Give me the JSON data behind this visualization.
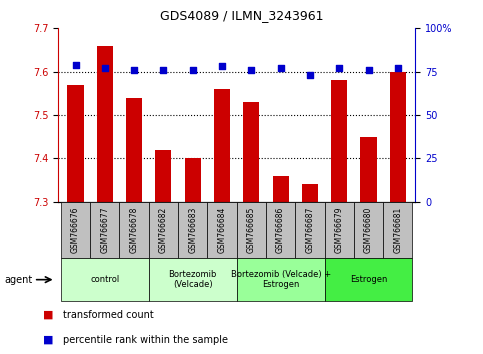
{
  "title": "GDS4089 / ILMN_3243961",
  "samples": [
    "GSM766676",
    "GSM766677",
    "GSM766678",
    "GSM766682",
    "GSM766683",
    "GSM766684",
    "GSM766685",
    "GSM766686",
    "GSM766687",
    "GSM766679",
    "GSM766680",
    "GSM766681"
  ],
  "red_values": [
    7.57,
    7.66,
    7.54,
    7.42,
    7.4,
    7.56,
    7.53,
    7.36,
    7.34,
    7.58,
    7.45,
    7.6
  ],
  "blue_values": [
    79,
    77,
    76,
    76,
    76,
    78,
    76,
    77,
    73,
    77,
    76,
    77
  ],
  "ylim_left": [
    7.3,
    7.7
  ],
  "ylim_right": [
    0,
    100
  ],
  "bar_color": "#cc0000",
  "dot_color": "#0000cc",
  "tick_label_bg": "#bbbbbb",
  "group_colors": [
    "#ccffcc",
    "#ccffcc",
    "#99ff99",
    "#44ee44"
  ],
  "group_labels": [
    "control",
    "Bortezomib\n(Velcade)",
    "Bortezomib (Velcade) +\nEstrogen",
    "Estrogen"
  ],
  "group_ranges": [
    [
      0,
      3
    ],
    [
      3,
      6
    ],
    [
      6,
      9
    ],
    [
      9,
      12
    ]
  ],
  "legend_red": "transformed count",
  "legend_blue": "percentile rank within the sample",
  "agent_label": "agent"
}
